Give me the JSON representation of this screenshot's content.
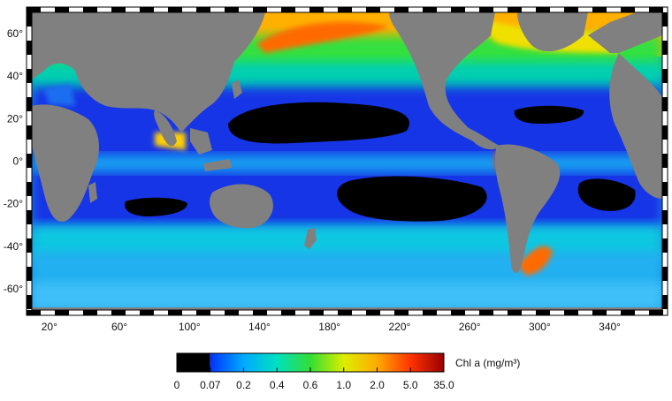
{
  "map": {
    "lat_labels": [
      "60°",
      "40°",
      "20°",
      "0°",
      "-20°",
      "-40°",
      "-60°"
    ],
    "lat_values": [
      60,
      40,
      20,
      0,
      -20,
      -40,
      -60
    ],
    "lon_labels": [
      "20°",
      "60°",
      "100°",
      "140°",
      "180°",
      "220°",
      "260°",
      "300°",
      "340°"
    ],
    "lon_values": [
      20,
      60,
      100,
      140,
      180,
      220,
      260,
      300,
      340
    ],
    "lon_range": [
      10,
      370
    ],
    "lat_range": [
      -70,
      70
    ]
  },
  "colorbar": {
    "title": "Chl a (mg/m³)",
    "tick_labels": [
      "0",
      "0.07",
      "0.2",
      "0.4",
      "0.6",
      "1.0",
      "2.0",
      "5.0",
      "35.0"
    ],
    "colors": [
      "#000000",
      "#0033ff",
      "#00aaff",
      "#00e0c0",
      "#33dd33",
      "#ddee00",
      "#ffaa00",
      "#ff3300",
      "#990000"
    ]
  },
  "colors": {
    "land": "#808080",
    "oligotrophic": "#000000",
    "low": "#1533e8",
    "mid_low": "#1aa8f0",
    "mid": "#00e0c0",
    "mid_high": "#40e040",
    "high": "#e8e800",
    "very_high": "#ff8c00",
    "extreme": "#ff2000"
  }
}
